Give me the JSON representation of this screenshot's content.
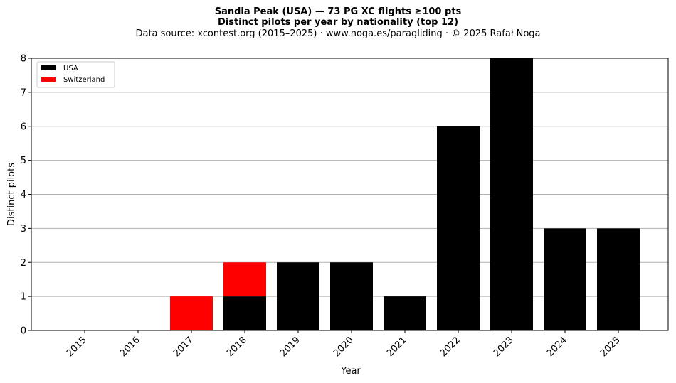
{
  "header": {
    "title_line1": "Sandia Peak (USA)  —  73 PG XC flights ≥100 pts",
    "title_line2": "Distinct pilots per year by nationality (top 12)",
    "subtitle": "Data source: xcontest.org (2015–2025)  ·  www.noga.es/paragliding  ·  © 2025 Rafał Noga"
  },
  "chart_data": {
    "type": "bar",
    "stacked": true,
    "categories": [
      "2015",
      "2016",
      "2017",
      "2018",
      "2019",
      "2020",
      "2021",
      "2022",
      "2023",
      "2024",
      "2025"
    ],
    "series": [
      {
        "name": "USA",
        "color": "#000000",
        "values": [
          0,
          0,
          0,
          1,
          2,
          2,
          1,
          6,
          8,
          3,
          3
        ]
      },
      {
        "name": "Switzerland",
        "color": "#ff0000",
        "values": [
          0,
          0,
          1,
          1,
          0,
          0,
          0,
          0,
          0,
          0,
          0
        ]
      }
    ],
    "xlabel": "Year",
    "ylabel": "Distinct pilots",
    "ylim": [
      0,
      8
    ],
    "yticks": [
      "0",
      "1",
      "2",
      "3",
      "4",
      "5",
      "6",
      "7",
      "8"
    ],
    "grid": "horizontal",
    "legend_position": "top-left"
  }
}
